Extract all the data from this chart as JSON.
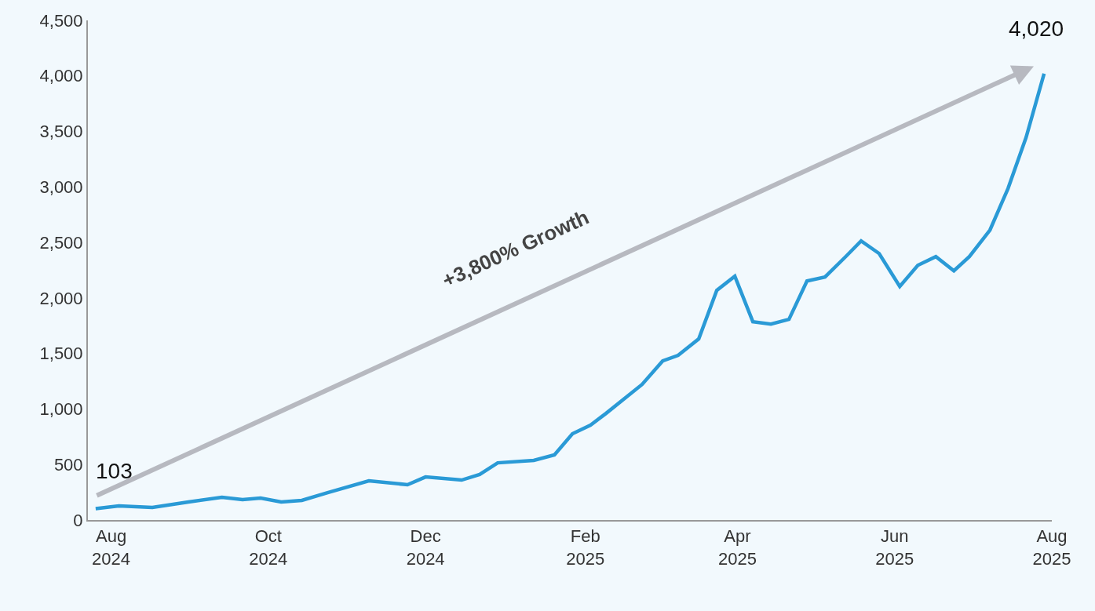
{
  "chart_data": {
    "type": "line",
    "x": [
      "2024-07-26",
      "2024-08-04",
      "2024-08-17",
      "2024-08-31",
      "2024-09-13",
      "2024-09-21",
      "2024-09-28",
      "2024-10-06",
      "2024-10-14",
      "2024-10-24",
      "2024-11-09",
      "2024-11-24",
      "2024-12-01",
      "2024-12-15",
      "2024-12-22",
      "2024-12-29",
      "2025-01-12",
      "2025-01-20",
      "2025-01-27",
      "2025-02-03",
      "2025-02-09",
      "2025-02-23",
      "2025-03-03",
      "2025-03-09",
      "2025-03-17",
      "2025-03-24",
      "2025-03-31",
      "2025-04-07",
      "2025-04-14",
      "2025-04-21",
      "2025-04-28",
      "2025-05-05",
      "2025-05-13",
      "2025-05-19",
      "2025-05-26",
      "2025-06-03",
      "2025-06-10",
      "2025-06-17",
      "2025-06-24",
      "2025-06-30",
      "2025-07-08",
      "2025-07-15",
      "2025-07-22",
      "2025-07-29"
    ],
    "series": [
      {
        "color": "#2a9ad6",
        "values": [
          103,
          127,
          113,
          162,
          205,
          184,
          198,
          162,
          177,
          247,
          353,
          318,
          388,
          360,
          410,
          515,
          537,
          586,
          777,
          855,
          960,
          1221,
          1433,
          1483,
          1631,
          2069,
          2196,
          1786,
          1765,
          1807,
          2153,
          2189,
          2372,
          2513,
          2400,
          2104,
          2294,
          2372,
          2245,
          2372,
          2612,
          2986,
          3445,
          4020
        ]
      }
    ],
    "xlim": [
      "2024-07-23",
      "2025-08-01"
    ],
    "xticks": [
      {
        "value": "2024-08-01",
        "label": "Aug\n2024"
      },
      {
        "value": "2024-10-01",
        "label": "Oct\n2024"
      },
      {
        "value": "2024-12-01",
        "label": "Dec\n2024"
      },
      {
        "value": "2025-02-01",
        "label": "Feb\n2025"
      },
      {
        "value": "2025-04-01",
        "label": "Apr\n2025"
      },
      {
        "value": "2025-06-01",
        "label": "Jun\n2025"
      },
      {
        "value": "2025-08-01",
        "label": "Aug\n2025"
      }
    ],
    "ylim": [
      0,
      4500
    ],
    "yticks": [
      {
        "value": 0,
        "label": "0"
      },
      {
        "value": 500,
        "label": "500"
      },
      {
        "value": 1000,
        "label": "1,000"
      },
      {
        "value": 1500,
        "label": "1,500"
      },
      {
        "value": 2000,
        "label": "2,000"
      },
      {
        "value": 2500,
        "label": "2,500"
      },
      {
        "value": 3000,
        "label": "3,000"
      },
      {
        "value": 3500,
        "label": "3,500"
      },
      {
        "value": 4000,
        "label": "4,000"
      },
      {
        "value": 4500,
        "label": "4,500"
      }
    ],
    "annotations": [
      {
        "text": "103",
        "x": "2024-07-26",
        "y": 103
      },
      {
        "text": "4,020",
        "x": "2025-07-29",
        "y": 4020
      },
      "+3,800% Growth"
    ],
    "grid": false,
    "marker": "none",
    "line_style": "solid"
  }
}
